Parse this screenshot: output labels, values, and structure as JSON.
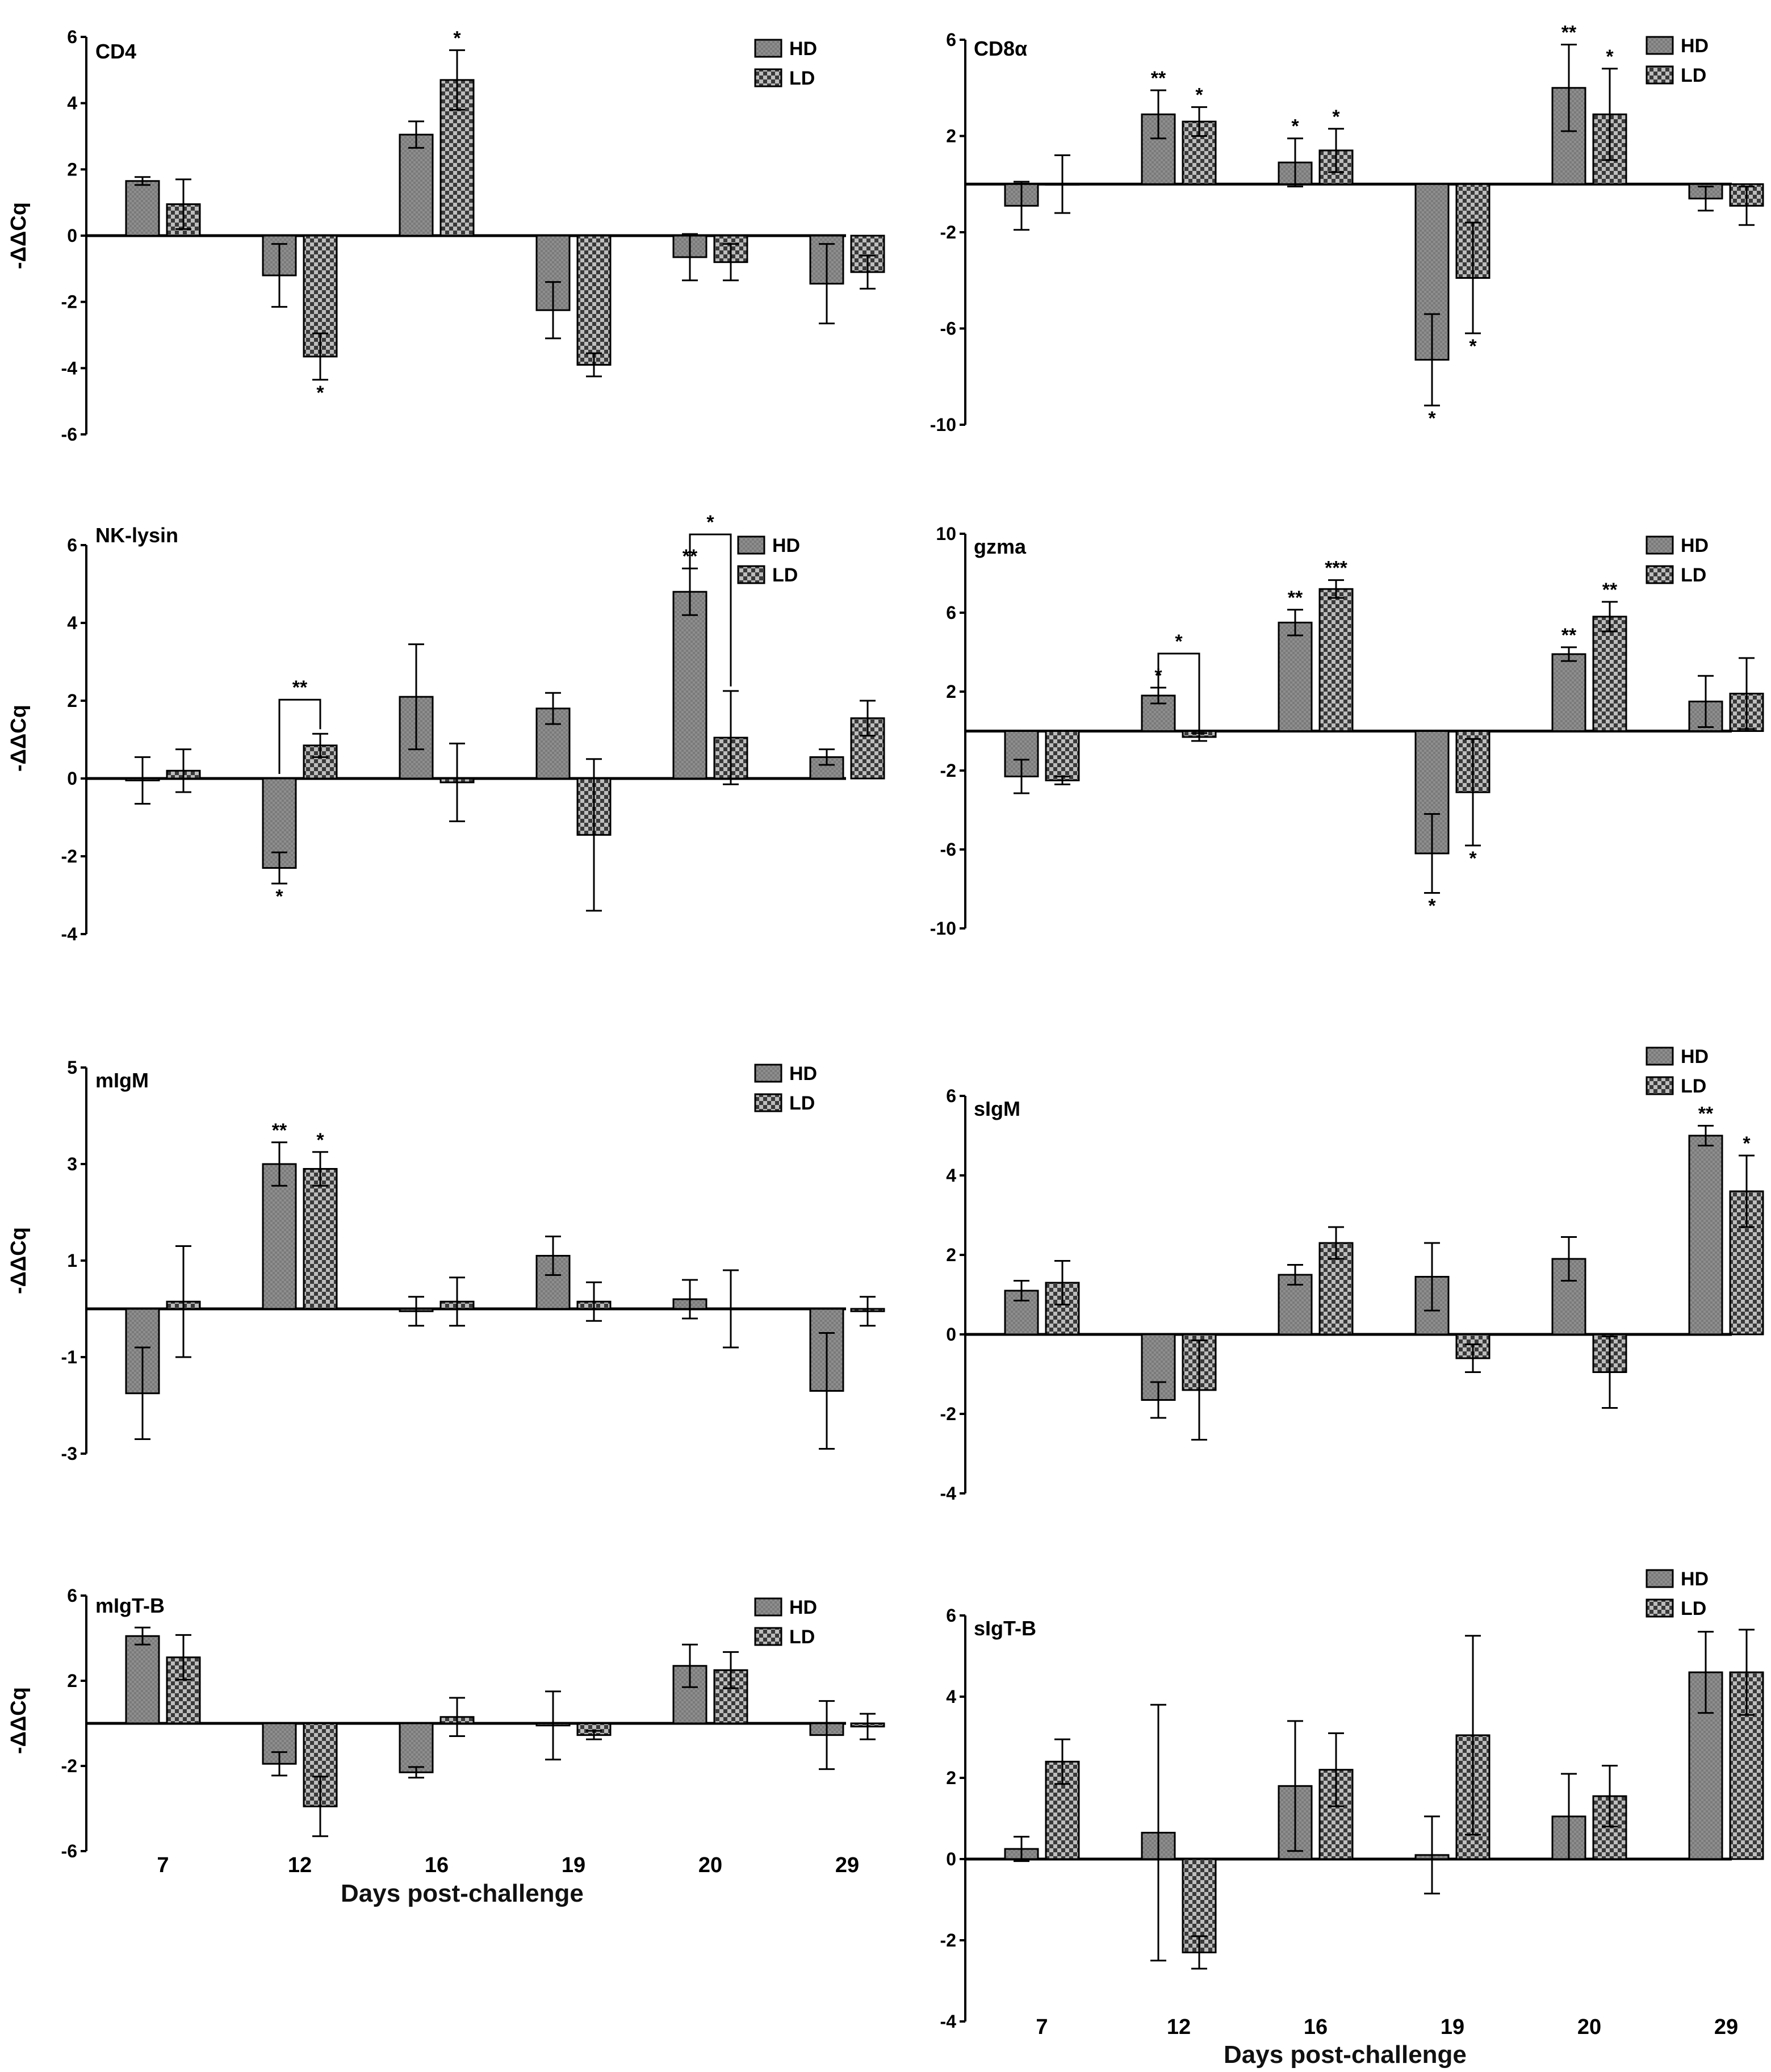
{
  "colors": {
    "hd_fill": "#8a8a8a",
    "ld_fill": "#b0b0b0",
    "ld_pattern_dot": "#222222",
    "axis": "#000000"
  },
  "x_axis_title": "Days post-challenge",
  "chart_data": [
    {
      "type": "bar",
      "title": "CD4",
      "ylabel": "-ΔΔCq",
      "categories": [
        "7",
        "12",
        "16",
        "19",
        "20",
        "29"
      ],
      "ylim": [
        -6,
        6
      ],
      "yticks": [
        "6",
        "4",
        "2",
        "0",
        "-2",
        "-4",
        "-6"
      ],
      "yticks_values": [
        6,
        4,
        2,
        0,
        -2,
        -4,
        -6
      ],
      "legend": [
        "HD",
        "LD"
      ],
      "legend_position": "top-right",
      "series": [
        {
          "name": "HD",
          "values": [
            1.65,
            -1.2,
            3.05,
            -2.25,
            -0.65,
            -1.45
          ],
          "errors": [
            0.12,
            0.95,
            0.4,
            0.85,
            0.7,
            1.2
          ],
          "labels": [
            "",
            "",
            "",
            "",
            "",
            ""
          ]
        },
        {
          "name": "LD",
          "values": [
            0.95,
            -3.65,
            4.7,
            -3.9,
            -0.8,
            -1.1
          ],
          "errors": [
            0.75,
            0.7,
            0.9,
            0.35,
            0.55,
            0.5
          ],
          "labels": [
            "",
            "*",
            "*",
            "",
            "",
            ""
          ]
        }
      ],
      "brackets": []
    },
    {
      "type": "bar",
      "title": "CD8α",
      "ylabel": "",
      "categories": [
        "7",
        "12",
        "16",
        "19",
        "20",
        "29"
      ],
      "ylim": [
        -10,
        6
      ],
      "yticks": [
        "6",
        "2",
        "-2",
        "-6",
        "-10"
      ],
      "yticks_values": [
        6,
        2,
        -2,
        -6,
        -10
      ],
      "legend": [
        "HD",
        "LD"
      ],
      "legend_position": "top-right",
      "series": [
        {
          "name": "HD",
          "values": [
            -0.9,
            2.9,
            0.9,
            -7.3,
            4.0,
            -0.6
          ],
          "errors": [
            1.0,
            1.0,
            1.0,
            1.9,
            1.8,
            0.5
          ],
          "labels": [
            "",
            "**",
            "*",
            "*",
            "**",
            ""
          ]
        },
        {
          "name": "LD",
          "values": [
            0.0,
            2.6,
            1.4,
            -3.9,
            2.9,
            -0.9
          ],
          "errors": [
            1.2,
            0.6,
            0.9,
            2.3,
            1.9,
            0.8
          ],
          "labels": [
            "",
            "*",
            "*",
            "*",
            "*",
            ""
          ]
        }
      ],
      "brackets": []
    },
    {
      "type": "bar",
      "title": "NK-lysin",
      "ylabel": "-ΔΔCq",
      "categories": [
        "7",
        "12",
        "16",
        "19",
        "20",
        "29"
      ],
      "ylim": [
        -4,
        6
      ],
      "yticks": [
        "6",
        "4",
        "2",
        "0",
        "-2",
        "-4"
      ],
      "yticks_values": [
        6,
        4,
        2,
        0,
        -2,
        -4
      ],
      "legend": [
        "HD",
        "LD"
      ],
      "legend_position": "top-right",
      "series": [
        {
          "name": "HD",
          "values": [
            -0.05,
            -2.3,
            2.1,
            1.8,
            4.8,
            0.55
          ],
          "errors": [
            0.6,
            0.4,
            1.35,
            0.4,
            0.6,
            0.2
          ],
          "labels": [
            "",
            "*",
            "",
            "",
            "**",
            ""
          ]
        },
        {
          "name": "LD",
          "values": [
            0.2,
            0.85,
            -0.1,
            -1.45,
            1.05,
            1.55
          ],
          "errors": [
            0.55,
            0.3,
            1.0,
            1.95,
            1.2,
            0.45
          ],
          "labels": [
            "",
            "",
            "",
            "",
            "",
            ""
          ]
        }
      ],
      "brackets": [
        {
          "category": "12",
          "label": "**"
        },
        {
          "category": "20",
          "label": "*"
        }
      ]
    },
    {
      "type": "bar",
      "title": "gzma",
      "ylabel": "",
      "categories": [
        "7",
        "12",
        "16",
        "19",
        "20",
        "29"
      ],
      "ylim": [
        -10,
        10
      ],
      "yticks": [
        "10",
        "6",
        "2",
        "-2",
        "-6",
        "-10"
      ],
      "yticks_values": [
        10,
        6,
        2,
        -2,
        -6,
        -10
      ],
      "legend": [
        "HD",
        "LD"
      ],
      "legend_position": "top-right",
      "series": [
        {
          "name": "HD",
          "values": [
            -2.3,
            1.8,
            5.5,
            -6.2,
            3.9,
            1.5
          ],
          "errors": [
            0.85,
            0.4,
            0.65,
            2.0,
            0.35,
            1.3
          ],
          "labels": [
            "",
            "*",
            "**",
            "*",
            "**",
            ""
          ]
        },
        {
          "name": "LD",
          "values": [
            -2.5,
            -0.3,
            7.2,
            -3.1,
            5.8,
            1.9
          ],
          "errors": [
            0.2,
            0.2,
            0.45,
            2.7,
            0.75,
            1.8
          ],
          "labels": [
            "",
            "",
            "***",
            "*",
            "**",
            ""
          ]
        }
      ],
      "brackets": [
        {
          "category": "12",
          "label": "*"
        }
      ]
    },
    {
      "type": "bar",
      "title": "mIgM",
      "ylabel": "-ΔΔCq",
      "categories": [
        "7",
        "12",
        "16",
        "19",
        "20",
        "29"
      ],
      "ylim": [
        -3,
        5
      ],
      "yticks": [
        "5",
        "3",
        "1",
        "-1",
        "-3"
      ],
      "yticks_values": [
        5,
        3,
        1,
        -1,
        -3
      ],
      "legend": [
        "HD",
        "LD"
      ],
      "legend_position": "top-right",
      "series": [
        {
          "name": "HD",
          "values": [
            -1.75,
            3.0,
            -0.05,
            1.1,
            0.2,
            -1.7
          ],
          "errors": [
            0.95,
            0.45,
            0.3,
            0.4,
            0.4,
            1.2
          ],
          "labels": [
            "",
            "**",
            "",
            "",
            "",
            ""
          ]
        },
        {
          "name": "LD",
          "values": [
            0.15,
            2.9,
            0.15,
            0.15,
            0.0,
            -0.05
          ],
          "errors": [
            1.15,
            0.35,
            0.5,
            0.4,
            0.8,
            0.3
          ],
          "labels": [
            "",
            "*",
            "",
            "",
            "",
            ""
          ]
        }
      ],
      "brackets": []
    },
    {
      "type": "bar",
      "title": "sIgM",
      "ylabel": "",
      "categories": [
        "7",
        "12",
        "16",
        "19",
        "20",
        "29"
      ],
      "ylim": [
        -4,
        6
      ],
      "yticks": [
        "6",
        "4",
        "2",
        "0",
        "-2",
        "-4"
      ],
      "yticks_values": [
        6,
        4,
        2,
        0,
        -2,
        -4
      ],
      "legend": [
        "HD",
        "LD"
      ],
      "legend_position": "top-right",
      "series": [
        {
          "name": "HD",
          "values": [
            1.1,
            -1.65,
            1.5,
            1.45,
            1.9,
            5.0
          ],
          "errors": [
            0.25,
            0.45,
            0.25,
            0.85,
            0.55,
            0.25
          ],
          "labels": [
            "",
            "",
            "",
            "",
            "",
            "**"
          ]
        },
        {
          "name": "LD",
          "values": [
            1.3,
            -1.4,
            2.3,
            -0.6,
            -0.95,
            3.6
          ],
          "errors": [
            0.55,
            1.25,
            0.4,
            0.35,
            0.9,
            0.9
          ],
          "labels": [
            "",
            "",
            "",
            "",
            "",
            "*"
          ]
        }
      ],
      "brackets": []
    },
    {
      "type": "bar",
      "title": "mIgT-B",
      "ylabel": "-ΔΔCq",
      "categories": [
        "7",
        "12",
        "16",
        "19",
        "20",
        "29"
      ],
      "ylim": [
        -6,
        6
      ],
      "yticks": [
        "6",
        "2",
        "-2",
        "-6"
      ],
      "yticks_values": [
        6,
        2,
        -2,
        -6
      ],
      "legend": [
        "HD",
        "LD"
      ],
      "legend_position": "top-right",
      "series": [
        {
          "name": "HD",
          "values": [
            4.1,
            -1.9,
            -2.3,
            -0.1,
            2.7,
            -0.55
          ],
          "errors": [
            0.4,
            0.55,
            0.25,
            1.6,
            1.0,
            1.6
          ],
          "labels": [
            "",
            "",
            "",
            "",
            "",
            ""
          ]
        },
        {
          "name": "LD",
          "values": [
            3.1,
            -3.9,
            0.3,
            -0.55,
            2.5,
            -0.15
          ],
          "errors": [
            1.05,
            1.4,
            0.9,
            0.2,
            0.85,
            0.6
          ],
          "labels": [
            "",
            "",
            "",
            "",
            "",
            ""
          ]
        }
      ],
      "brackets": []
    },
    {
      "type": "bar",
      "title": "sIgT-B",
      "ylabel": "",
      "categories": [
        "7",
        "12",
        "16",
        "19",
        "20",
        "29"
      ],
      "ylim": [
        -4,
        6
      ],
      "yticks": [
        "6",
        "4",
        "2",
        "0",
        "-2",
        "-4"
      ],
      "yticks_values": [
        6,
        4,
        2,
        0,
        -2,
        -4
      ],
      "legend": [
        "HD",
        "LD"
      ],
      "legend_position": "top-right",
      "series": [
        {
          "name": "HD",
          "values": [
            0.25,
            0.65,
            1.8,
            0.1,
            1.05,
            4.6
          ],
          "errors": [
            0.3,
            3.15,
            1.6,
            0.95,
            1.05,
            1.0
          ],
          "labels": [
            "",
            "",
            "",
            "",
            "",
            ""
          ]
        },
        {
          "name": "LD",
          "values": [
            2.4,
            -2.3,
            2.2,
            3.05,
            1.55,
            4.6
          ],
          "errors": [
            0.55,
            0.4,
            0.9,
            2.45,
            0.75,
            1.05
          ],
          "labels": [
            "",
            "",
            "",
            "",
            "",
            ""
          ]
        }
      ],
      "brackets": []
    }
  ]
}
